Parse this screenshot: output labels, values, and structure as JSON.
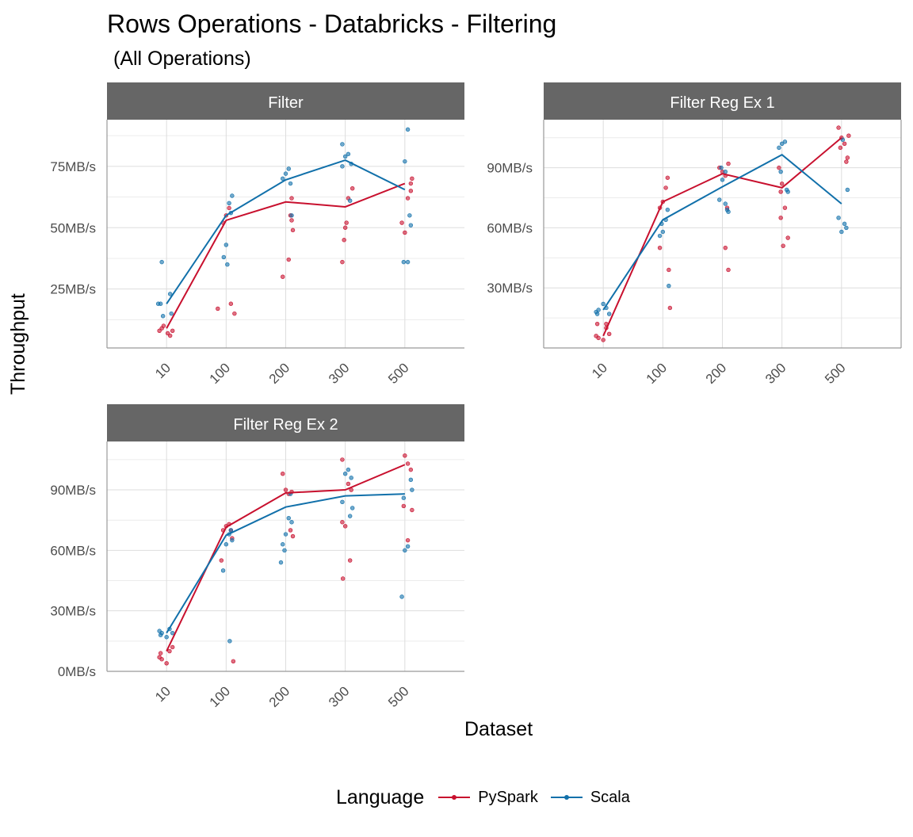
{
  "title": "Rows Operations - Databricks - Filtering",
  "subtitle": "(All Operations)",
  "colors": {
    "pyspark": "#c8102e",
    "scala": "#1170aa",
    "strip": "#666666",
    "grid": "#dddddd",
    "axis": "#999999"
  },
  "chart_data": {
    "type": "line",
    "xlabel": "Dataset",
    "ylabel": "Throughput",
    "legend": {
      "title": "Language",
      "position": "bottom"
    },
    "categories": [
      "10",
      "100",
      "200",
      "300",
      "500"
    ],
    "panels": [
      {
        "name": "Filter",
        "ylim": [
          1,
          94
        ],
        "yticks": [
          25,
          50,
          75
        ],
        "ytick_labels": [
          "25MB/s",
          "50MB/s",
          "75MB/s"
        ],
        "series": [
          {
            "name": "PySpark",
            "values": [
              9,
              53,
              60.5,
              58.5,
              68
            ],
            "points": [
              [
                -0.12,
                8
              ],
              [
                -0.08,
                9
              ],
              [
                -0.05,
                10
              ],
              [
                0.02,
                7
              ],
              [
                0.06,
                6
              ],
              [
                0.1,
                8
              ],
              [
                0.14,
                15
              ],
              [
                -0.14,
                17
              ],
              [
                0.08,
                19
              ],
              [
                -0.05,
                52
              ],
              [
                0.0,
                55
              ],
              [
                0.05,
                58
              ],
              [
                0.1,
                53
              ],
              [
                0.12,
                49
              ],
              [
                -0.05,
                30
              ],
              [
                0.05,
                37
              ],
              [
                0.08,
                55
              ],
              [
                0.1,
                62
              ],
              [
                0.12,
                66
              ],
              [
                -0.05,
                36
              ],
              [
                -0.02,
                45
              ],
              [
                0.0,
                50
              ],
              [
                0.02,
                52
              ],
              [
                0.05,
                62
              ],
              [
                0.1,
                65
              ],
              [
                -0.05,
                52
              ],
              [
                0.0,
                48
              ],
              [
                0.05,
                62
              ],
              [
                0.1,
                68
              ],
              [
                0.12,
                70
              ]
            ]
          },
          {
            "name": "Scala",
            "values": [
              19,
              55,
              69.5,
              77.5,
              65.5
            ],
            "points": [
              [
                -0.14,
                19
              ],
              [
                -0.1,
                19
              ],
              [
                0.06,
                23
              ],
              [
                0.08,
                15
              ],
              [
                -0.06,
                14
              ],
              [
                -0.08,
                36
              ],
              [
                -0.04,
                38
              ],
              [
                0.0,
                43
              ],
              [
                0.02,
                35
              ],
              [
                0.05,
                60
              ],
              [
                0.1,
                63
              ],
              [
                0.08,
                56
              ],
              [
                -0.05,
                70
              ],
              [
                0.0,
                72
              ],
              [
                0.05,
                74
              ],
              [
                0.1,
                55
              ],
              [
                0.08,
                68
              ],
              [
                -0.05,
                75
              ],
              [
                0.0,
                79
              ],
              [
                0.05,
                80
              ],
              [
                0.1,
                76
              ],
              [
                0.08,
                61
              ],
              [
                -0.05,
                84
              ],
              [
                0.0,
                77
              ],
              [
                0.05,
                90
              ],
              [
                0.08,
                55
              ],
              [
                0.1,
                51
              ],
              [
                -0.02,
                36
              ],
              [
                0.05,
                36
              ]
            ]
          }
        ]
      },
      {
        "name": "Filter Reg Ex 1",
        "ylim": [
          0,
          114
        ],
        "yticks": [
          30,
          60,
          90
        ],
        "ytick_labels": [
          "30MB/s",
          "60MB/s",
          "90MB/s"
        ],
        "series": [
          {
            "name": "PySpark",
            "values": [
              6,
              73,
              87,
              80,
              105
            ],
            "points": [
              [
                -0.12,
                6
              ],
              [
                -0.08,
                5
              ],
              [
                0.0,
                4
              ],
              [
                0.05,
                10
              ],
              [
                0.1,
                7
              ],
              [
                -0.1,
                12
              ],
              [
                0.05,
                12
              ],
              [
                0.12,
                20
              ],
              [
                -0.05,
                70
              ],
              [
                0.0,
                73
              ],
              [
                0.05,
                80
              ],
              [
                0.08,
                85
              ],
              [
                0.1,
                39
              ],
              [
                -0.05,
                50
              ],
              [
                0.05,
                50
              ],
              [
                0.1,
                39
              ],
              [
                -0.05,
                90
              ],
              [
                0.0,
                88
              ],
              [
                0.05,
                86
              ],
              [
                0.1,
                92
              ],
              [
                0.08,
                70
              ],
              [
                -0.02,
                78
              ],
              [
                -0.05,
                90
              ],
              [
                0.0,
                82
              ],
              [
                0.05,
                70
              ],
              [
                0.1,
                55
              ],
              [
                0.02,
                51
              ],
              [
                -0.02,
                65
              ],
              [
                -0.05,
                110
              ],
              [
                0.0,
                105
              ],
              [
                0.05,
                102
              ],
              [
                0.1,
                95
              ],
              [
                0.12,
                106
              ],
              [
                -0.02,
                100
              ],
              [
                0.08,
                93
              ]
            ]
          },
          {
            "name": "Scala",
            "values": [
              19,
              64,
              80.5,
              96.5,
              72
            ],
            "points": [
              [
                -0.12,
                18
              ],
              [
                -0.08,
                19
              ],
              [
                0.0,
                22
              ],
              [
                0.05,
                20
              ],
              [
                0.1,
                17
              ],
              [
                -0.1,
                17
              ],
              [
                -0.05,
                56
              ],
              [
                0.0,
                58
              ],
              [
                0.05,
                64
              ],
              [
                0.08,
                69
              ],
              [
                0.1,
                31
              ],
              [
                -0.02,
                62
              ],
              [
                0.05,
                72
              ],
              [
                -0.05,
                74
              ],
              [
                0.0,
                84
              ],
              [
                0.05,
                88
              ],
              [
                0.08,
                69
              ],
              [
                0.1,
                68
              ],
              [
                -0.02,
                90
              ],
              [
                -0.05,
                100
              ],
              [
                0.0,
                102
              ],
              [
                0.05,
                103
              ],
              [
                0.08,
                79
              ],
              [
                0.1,
                78
              ],
              [
                -0.02,
                88
              ],
              [
                -0.05,
                65
              ],
              [
                0.0,
                58
              ],
              [
                0.05,
                62
              ],
              [
                0.08,
                60
              ],
              [
                0.1,
                79
              ],
              [
                0.02,
                104
              ]
            ]
          }
        ]
      },
      {
        "name": "Filter Reg Ex 2",
        "ylim": [
          0,
          114
        ],
        "yticks": [
          0,
          30,
          60,
          90
        ],
        "ytick_labels": [
          "0MB/s",
          "30MB/s",
          "60MB/s",
          "90MB/s"
        ],
        "series": [
          {
            "name": "PySpark",
            "values": [
              10,
              71.5,
              88.5,
              90,
              102.5
            ],
            "points": [
              [
                -0.12,
                7
              ],
              [
                -0.08,
                6
              ],
              [
                0.0,
                4
              ],
              [
                0.05,
                10
              ],
              [
                0.1,
                12
              ],
              [
                -0.1,
                9
              ],
              [
                0.12,
                5
              ],
              [
                -0.05,
                70
              ],
              [
                0.0,
                72
              ],
              [
                0.05,
                73
              ],
              [
                0.08,
                70
              ],
              [
                0.1,
                66
              ],
              [
                -0.08,
                55
              ],
              [
                -0.05,
                98
              ],
              [
                0.0,
                90
              ],
              [
                0.05,
                88
              ],
              [
                0.1,
                89
              ],
              [
                0.08,
                70
              ],
              [
                0.12,
                67
              ],
              [
                -0.04,
                46
              ],
              [
                -0.05,
                74
              ],
              [
                0.0,
                72
              ],
              [
                0.05,
                93
              ],
              [
                0.1,
                90
              ],
              [
                0.08,
                55
              ],
              [
                -0.05,
                105
              ],
              [
                0.0,
                107
              ],
              [
                0.05,
                103
              ],
              [
                0.1,
                100
              ],
              [
                0.12,
                80
              ],
              [
                -0.02,
                82
              ],
              [
                0.05,
                65
              ]
            ]
          },
          {
            "name": "Scala",
            "values": [
              19,
              67.5,
              81.5,
              87,
              88
            ],
            "points": [
              [
                -0.12,
                20
              ],
              [
                -0.08,
                19
              ],
              [
                0.0,
                17
              ],
              [
                0.05,
                21
              ],
              [
                0.1,
                19
              ],
              [
                -0.1,
                18
              ],
              [
                0.06,
                15
              ],
              [
                -0.05,
                50
              ],
              [
                0.0,
                63
              ],
              [
                0.05,
                68
              ],
              [
                0.08,
                70
              ],
              [
                0.1,
                65
              ],
              [
                -0.08,
                54
              ],
              [
                -0.05,
                63
              ],
              [
                0.0,
                68
              ],
              [
                0.05,
                76
              ],
              [
                0.1,
                74
              ],
              [
                0.08,
                88
              ],
              [
                -0.02,
                60
              ],
              [
                -0.05,
                84
              ],
              [
                0.0,
                98
              ],
              [
                0.05,
                100
              ],
              [
                0.1,
                96
              ],
              [
                0.08,
                77
              ],
              [
                0.12,
                81
              ],
              [
                -0.05,
                37
              ],
              [
                0.0,
                60
              ],
              [
                0.05,
                62
              ],
              [
                0.1,
                95
              ],
              [
                0.12,
                90
              ],
              [
                -0.02,
                86
              ]
            ]
          }
        ]
      }
    ]
  }
}
